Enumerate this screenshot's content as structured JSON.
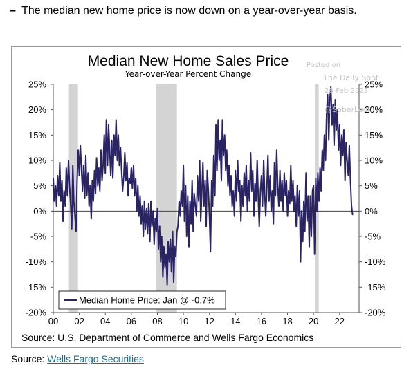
{
  "headline": {
    "bullet": "–",
    "text": "The median new home price is now down on a year-over-year basis."
  },
  "watermark": {
    "line1": "Posted on",
    "line2": "The Daily Shot",
    "line3": "28-Feb-2023",
    "line4": "@SoberLook"
  },
  "source_footer": {
    "label": "Source:",
    "link_text": "Wells Fargo Securities"
  },
  "colors": {
    "series": "#2a2465",
    "recession": "#d4d4d4",
    "source_link": "#1a6f8e"
  },
  "chart_data": {
    "type": "line",
    "title": "Median New Home Sales Price",
    "subtitle": "Year-over-Year Percent Change",
    "source": "Source: U.S. Department of Commerce and Wells Fargo Economics",
    "legend": {
      "label": "Median Home Price: Jan @ -0.7%",
      "placement": "bottom-left"
    },
    "xlim": [
      2000,
      2023.5
    ],
    "ylim": [
      -20,
      25
    ],
    "x_ticks": [
      2000,
      2002,
      2004,
      2006,
      2008,
      2010,
      2012,
      2014,
      2016,
      2018,
      2020,
      2022
    ],
    "x_tick_labels": [
      "00",
      "02",
      "04",
      "06",
      "08",
      "10",
      "12",
      "14",
      "16",
      "18",
      "20",
      "22"
    ],
    "y_ticks": [
      25,
      20,
      15,
      10,
      5,
      0,
      -5,
      -10,
      -15,
      -20
    ],
    "y_tick_labels": [
      "25%",
      "20%",
      "15%",
      "10%",
      "5%",
      "0%",
      "-5%",
      "-10%",
      "-15%",
      "-20%"
    ],
    "recessions": [
      [
        2001.2,
        2001.9
      ],
      [
        2007.9,
        2009.5
      ],
      [
        2020.1,
        2020.4
      ]
    ],
    "series": [
      {
        "name": "Median Home Price",
        "x": [
          2000.0,
          2000.08,
          2000.17,
          2000.25,
          2000.33,
          2000.42,
          2000.5,
          2000.58,
          2000.67,
          2000.75,
          2000.83,
          2000.92,
          2001.0,
          2001.08,
          2001.17,
          2001.25,
          2001.33,
          2001.42,
          2001.5,
          2001.58,
          2001.67,
          2001.75,
          2001.83,
          2001.92,
          2002.0,
          2002.08,
          2002.17,
          2002.25,
          2002.33,
          2002.42,
          2002.5,
          2002.58,
          2002.67,
          2002.75,
          2002.83,
          2002.92,
          2003.0,
          2003.08,
          2003.17,
          2003.25,
          2003.33,
          2003.42,
          2003.5,
          2003.58,
          2003.67,
          2003.75,
          2003.83,
          2003.92,
          2004.0,
          2004.08,
          2004.17,
          2004.25,
          2004.33,
          2004.42,
          2004.5,
          2004.58,
          2004.67,
          2004.75,
          2004.83,
          2004.92,
          2005.0,
          2005.08,
          2005.17,
          2005.25,
          2005.33,
          2005.42,
          2005.5,
          2005.58,
          2005.67,
          2005.75,
          2005.83,
          2005.92,
          2006.0,
          2006.08,
          2006.17,
          2006.25,
          2006.33,
          2006.42,
          2006.5,
          2006.58,
          2006.67,
          2006.75,
          2006.83,
          2006.92,
          2007.0,
          2007.08,
          2007.17,
          2007.25,
          2007.33,
          2007.42,
          2007.5,
          2007.58,
          2007.67,
          2007.75,
          2007.83,
          2007.92,
          2008.0,
          2008.08,
          2008.17,
          2008.25,
          2008.33,
          2008.42,
          2008.5,
          2008.58,
          2008.67,
          2008.75,
          2008.83,
          2008.92,
          2009.0,
          2009.08,
          2009.17,
          2009.25,
          2009.33,
          2009.42,
          2009.5,
          2009.58,
          2009.67,
          2009.75,
          2009.83,
          2009.92,
          2010.0,
          2010.08,
          2010.17,
          2010.25,
          2010.33,
          2010.42,
          2010.5,
          2010.58,
          2010.67,
          2010.75,
          2010.83,
          2010.92,
          2011.0,
          2011.08,
          2011.17,
          2011.25,
          2011.33,
          2011.42,
          2011.5,
          2011.58,
          2011.67,
          2011.75,
          2011.83,
          2011.92,
          2012.0,
          2012.08,
          2012.17,
          2012.25,
          2012.33,
          2012.42,
          2012.5,
          2012.58,
          2012.67,
          2012.75,
          2012.83,
          2012.92,
          2013.0,
          2013.08,
          2013.17,
          2013.25,
          2013.33,
          2013.42,
          2013.5,
          2013.58,
          2013.67,
          2013.75,
          2013.83,
          2013.92,
          2014.0,
          2014.08,
          2014.17,
          2014.25,
          2014.33,
          2014.42,
          2014.5,
          2014.58,
          2014.67,
          2014.75,
          2014.83,
          2014.92,
          2015.0,
          2015.08,
          2015.17,
          2015.25,
          2015.33,
          2015.42,
          2015.5,
          2015.58,
          2015.67,
          2015.75,
          2015.83,
          2015.92,
          2016.0,
          2016.08,
          2016.17,
          2016.25,
          2016.33,
          2016.42,
          2016.5,
          2016.58,
          2016.67,
          2016.75,
          2016.83,
          2016.92,
          2017.0,
          2017.08,
          2017.17,
          2017.25,
          2017.33,
          2017.42,
          2017.5,
          2017.58,
          2017.67,
          2017.75,
          2017.83,
          2017.92,
          2018.0,
          2018.08,
          2018.17,
          2018.25,
          2018.33,
          2018.42,
          2018.5,
          2018.58,
          2018.67,
          2018.75,
          2018.83,
          2018.92,
          2019.0,
          2019.08,
          2019.17,
          2019.25,
          2019.33,
          2019.42,
          2019.5,
          2019.58,
          2019.67,
          2019.75,
          2019.83,
          2019.92,
          2020.0,
          2020.08,
          2020.17,
          2020.25,
          2020.33,
          2020.42,
          2020.5,
          2020.58,
          2020.67,
          2020.75,
          2020.83,
          2020.92,
          2021.0,
          2021.08,
          2021.17,
          2021.25,
          2021.33,
          2021.42,
          2021.5,
          2021.58,
          2021.67,
          2021.75,
          2021.83,
          2021.92,
          2022.0,
          2022.08,
          2022.17,
          2022.25,
          2022.33,
          2022.42,
          2022.5,
          2022.58,
          2022.67,
          2022.75,
          2022.83,
          2022.92,
          2023.0
        ],
        "values": [
          6.5,
          2.0,
          5.0,
          1.0,
          7.0,
          3.0,
          9.5,
          2.0,
          6.0,
          -2.0,
          4.0,
          1.0,
          8.5,
          3.0,
          10.0,
          5.0,
          1.5,
          -3.5,
          9.0,
          2.0,
          -1.0,
          -4.0,
          6.0,
          12.0,
          7.0,
          13.0,
          8.0,
          4.0,
          9.0,
          2.5,
          11.0,
          3.0,
          7.5,
          1.0,
          5.0,
          -1.5,
          6.0,
          2.0,
          8.0,
          3.5,
          10.5,
          5.0,
          8.5,
          4.0,
          12.0,
          6.0,
          9.0,
          15.0,
          7.5,
          18.0,
          9.0,
          17.0,
          12.5,
          7.0,
          14.0,
          6.5,
          15.0,
          11.0,
          18.0,
          10.0,
          15.0,
          9.0,
          12.5,
          8.0,
          4.0,
          7.0,
          11.5,
          6.0,
          9.5,
          3.0,
          6.5,
          5.5,
          8.5,
          4.5,
          9.0,
          3.0,
          6.5,
          0.0,
          5.0,
          -1.0,
          3.0,
          -2.5,
          1.0,
          -5.0,
          2.0,
          -3.5,
          0.5,
          -4.5,
          1.5,
          -6.0,
          2.0,
          -3.0,
          0.0,
          -6.5,
          -1.5,
          -4.0,
          0.5,
          -7.5,
          -3.0,
          -10.0,
          -5.0,
          -13.0,
          -7.0,
          -11.0,
          -8.5,
          -14.5,
          -6.0,
          -10.0,
          -5.5,
          -12.0,
          -4.0,
          -14.0,
          -7.0,
          -9.0,
          -4.0,
          -3.0,
          2.0,
          -1.0,
          4.0,
          1.0,
          9.0,
          -2.0,
          5.0,
          -5.0,
          3.0,
          -7.0,
          2.0,
          -2.5,
          6.0,
          -4.0,
          3.5,
          1.0,
          -1.0,
          7.0,
          2.0,
          10.0,
          -2.0,
          4.0,
          9.5,
          1.0,
          6.0,
          -3.0,
          8.0,
          4.0,
          -1.0,
          -8.0,
          6.0,
          1.0,
          11.0,
          3.0,
          17.0,
          8.0,
          18.0,
          10.0,
          14.0,
          6.0,
          18.0,
          11.0,
          15.0,
          8.0,
          12.0,
          5.0,
          9.0,
          3.0,
          7.0,
          1.0,
          4.0,
          -1.0,
          8.0,
          2.0,
          10.0,
          4.0,
          6.0,
          -2.0,
          5.0,
          1.0,
          7.5,
          3.0,
          9.0,
          0.0,
          6.0,
          2.0,
          11.5,
          4.0,
          8.0,
          -1.0,
          5.5,
          2.0,
          10.0,
          3.0,
          -3.0,
          4.0,
          7.0,
          1.0,
          10.0,
          3.5,
          -1.0,
          5.0,
          11.0,
          2.0,
          7.0,
          0.0,
          4.0,
          -2.5,
          9.5,
          3.0,
          12.0,
          5.0,
          1.0,
          8.0,
          2.0,
          6.0,
          0.0,
          7.5,
          3.0,
          6.0,
          -1.0,
          4.0,
          1.5,
          9.0,
          2.0,
          6.0,
          0.0,
          3.0,
          -3.0,
          5.0,
          -1.0,
          4.0,
          -10.0,
          0.0,
          -6.0,
          2.0,
          -4.0,
          7.5,
          -2.0,
          3.0,
          -7.0,
          3.0,
          -5.0,
          4.0,
          5.0,
          -8.5,
          6.5,
          0.0,
          7.5,
          2.0,
          8.5,
          4.0,
          12.0,
          8.0,
          15.0,
          10.0,
          19.0,
          23.0,
          14.0,
          22.0,
          24.5,
          17.0,
          21.0,
          13.0,
          22.0,
          16.0,
          20.0,
          12.0,
          17.0,
          9.0,
          15.0,
          11.0,
          16.0,
          6.0,
          13.5,
          10.0,
          7.0,
          13.0,
          6.5,
          1.0,
          -0.7
        ]
      }
    ]
  }
}
